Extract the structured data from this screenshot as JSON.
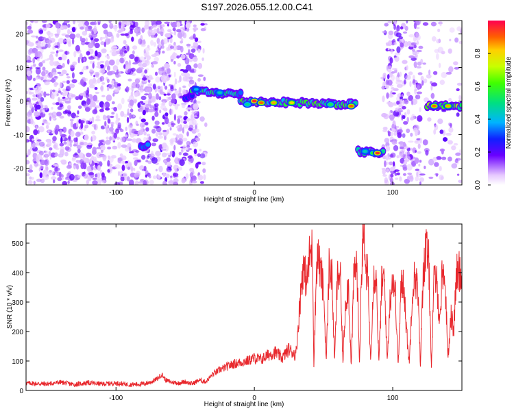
{
  "title": "S197.2026.055.12.00.C41",
  "chart_data": [
    {
      "type": "heatmap",
      "name": "spectrogram",
      "xlabel": "Height of straight line (km)",
      "ylabel": "Frequency (Hz)",
      "xlim": [
        -165,
        150
      ],
      "ylim": [
        -25,
        24
      ],
      "xticks": [
        -100,
        0,
        100
      ],
      "yticks": [
        -20,
        -10,
        0,
        10,
        20
      ],
      "colorbar": {
        "label": "Normalized spectral amplitude",
        "range": [
          0,
          1
        ],
        "ticks": [
          "0.0",
          "0.2",
          "0.4",
          "0.6",
          "0.8"
        ],
        "tick_values": [
          0,
          0.2,
          0.4,
          0.6,
          0.8
        ]
      },
      "noise_regions": [
        {
          "x": [
            -165,
            -40
          ],
          "density": 0.75
        },
        {
          "x": [
            -40,
            -35
          ],
          "density": 0.35
        },
        {
          "x": [
            93,
            120
          ],
          "density": 0.75
        },
        {
          "x": [
            120,
            150
          ],
          "density": 0.2
        }
      ],
      "tracks": [
        {
          "x": [
            -50,
            -45
          ],
          "freq": [
            1,
            1.5
          ],
          "amp": 0.3
        },
        {
          "x": [
            -45,
            -10
          ],
          "freq": [
            3,
            2
          ],
          "amp": 0.45
        },
        {
          "x": [
            -10,
            73
          ],
          "freq": [
            0,
            -1
          ],
          "amp": 0.55
        },
        {
          "x": [
            75,
            93
          ],
          "freq": [
            -15,
            -15.5
          ],
          "amp": 0.5
        },
        {
          "x": [
            -82,
            -77
          ],
          "freq": [
            -13.5,
            -13.5
          ],
          "amp": 0.3
        },
        {
          "x": [
            125,
            150
          ],
          "freq": [
            -1.5,
            -1.5
          ],
          "amp": 0.6
        }
      ],
      "peaks": [
        {
          "x": -42,
          "freq": 3.5,
          "amp": 0.4
        },
        {
          "x": -25,
          "freq": 2.5,
          "amp": 0.45
        },
        {
          "x": -5,
          "freq": -1,
          "amp": 0.5
        },
        {
          "x": 0,
          "freq": 0,
          "amp": 0.95
        },
        {
          "x": 5,
          "freq": -0.5,
          "amp": 0.9
        },
        {
          "x": 14,
          "freq": -0.5,
          "amp": 0.85
        },
        {
          "x": 27,
          "freq": -0.5,
          "amp": 0.8
        },
        {
          "x": 55,
          "freq": -1,
          "amp": 0.55
        },
        {
          "x": 70,
          "freq": -1.5,
          "amp": 0.9
        },
        {
          "x": 80,
          "freq": -15,
          "amp": 0.45
        },
        {
          "x": 86,
          "freq": -15.5,
          "amp": 0.6
        },
        {
          "x": 89,
          "freq": -15.5,
          "amp": 0.95
        },
        {
          "x": 130,
          "freq": -1.5,
          "amp": 0.9
        },
        {
          "x": 140,
          "freq": -1.5,
          "amp": 0.85
        }
      ]
    },
    {
      "type": "line",
      "name": "snr",
      "xlabel": "Height of straight line (km)",
      "ylabel": "SNR (10 * v/v)",
      "xlim": [
        -165,
        150
      ],
      "ylim": [
        0,
        565
      ],
      "xticks": [
        -100,
        0,
        100
      ],
      "yticks": [
        0,
        100,
        200,
        300,
        400,
        500
      ],
      "color": "#e8282d",
      "series": [
        {
          "name": "SNR",
          "x": [
            -165,
            -150,
            -140,
            -130,
            -120,
            -110,
            -100,
            -90,
            -80,
            -75,
            -70,
            -67,
            -64,
            -60,
            -55,
            -50,
            -45,
            -40,
            -35,
            -30,
            -25,
            -20,
            -15,
            -10,
            -5,
            0,
            5,
            10,
            15,
            20,
            25,
            30,
            33,
            35,
            38,
            40,
            42,
            43,
            45,
            46,
            48,
            50,
            52,
            54,
            56,
            58,
            60,
            62,
            64,
            66,
            68,
            70,
            72,
            74,
            76,
            78,
            79,
            80,
            82,
            84,
            86,
            88,
            90,
            92,
            94,
            96,
            98,
            100,
            102,
            104,
            106,
            108,
            110,
            112,
            114,
            116,
            118,
            120,
            122,
            124,
            126,
            128,
            130,
            132,
            134,
            136,
            138,
            140,
            142,
            144,
            146,
            148,
            150
          ],
          "values": [
            25,
            22,
            28,
            20,
            26,
            22,
            25,
            20,
            22,
            28,
            40,
            55,
            35,
            28,
            25,
            30,
            22,
            35,
            30,
            55,
            70,
            80,
            90,
            95,
            100,
            110,
            105,
            120,
            130,
            110,
            140,
            120,
            300,
            420,
            370,
            460,
            480,
            90,
            430,
            460,
            400,
            340,
            100,
            420,
            390,
            100,
            380,
            400,
            95,
            310,
            360,
            80,
            400,
            430,
            100,
            500,
            560,
            420,
            390,
            100,
            380,
            400,
            90,
            360,
            380,
            100,
            300,
            390,
            320,
            85,
            350,
            370,
            200,
            90,
            330,
            390,
            350,
            90,
            400,
            480,
            440,
            85,
            390,
            360,
            230,
            420,
            350,
            110,
            260,
            200,
            390,
            410,
            380
          ]
        }
      ]
    }
  ]
}
